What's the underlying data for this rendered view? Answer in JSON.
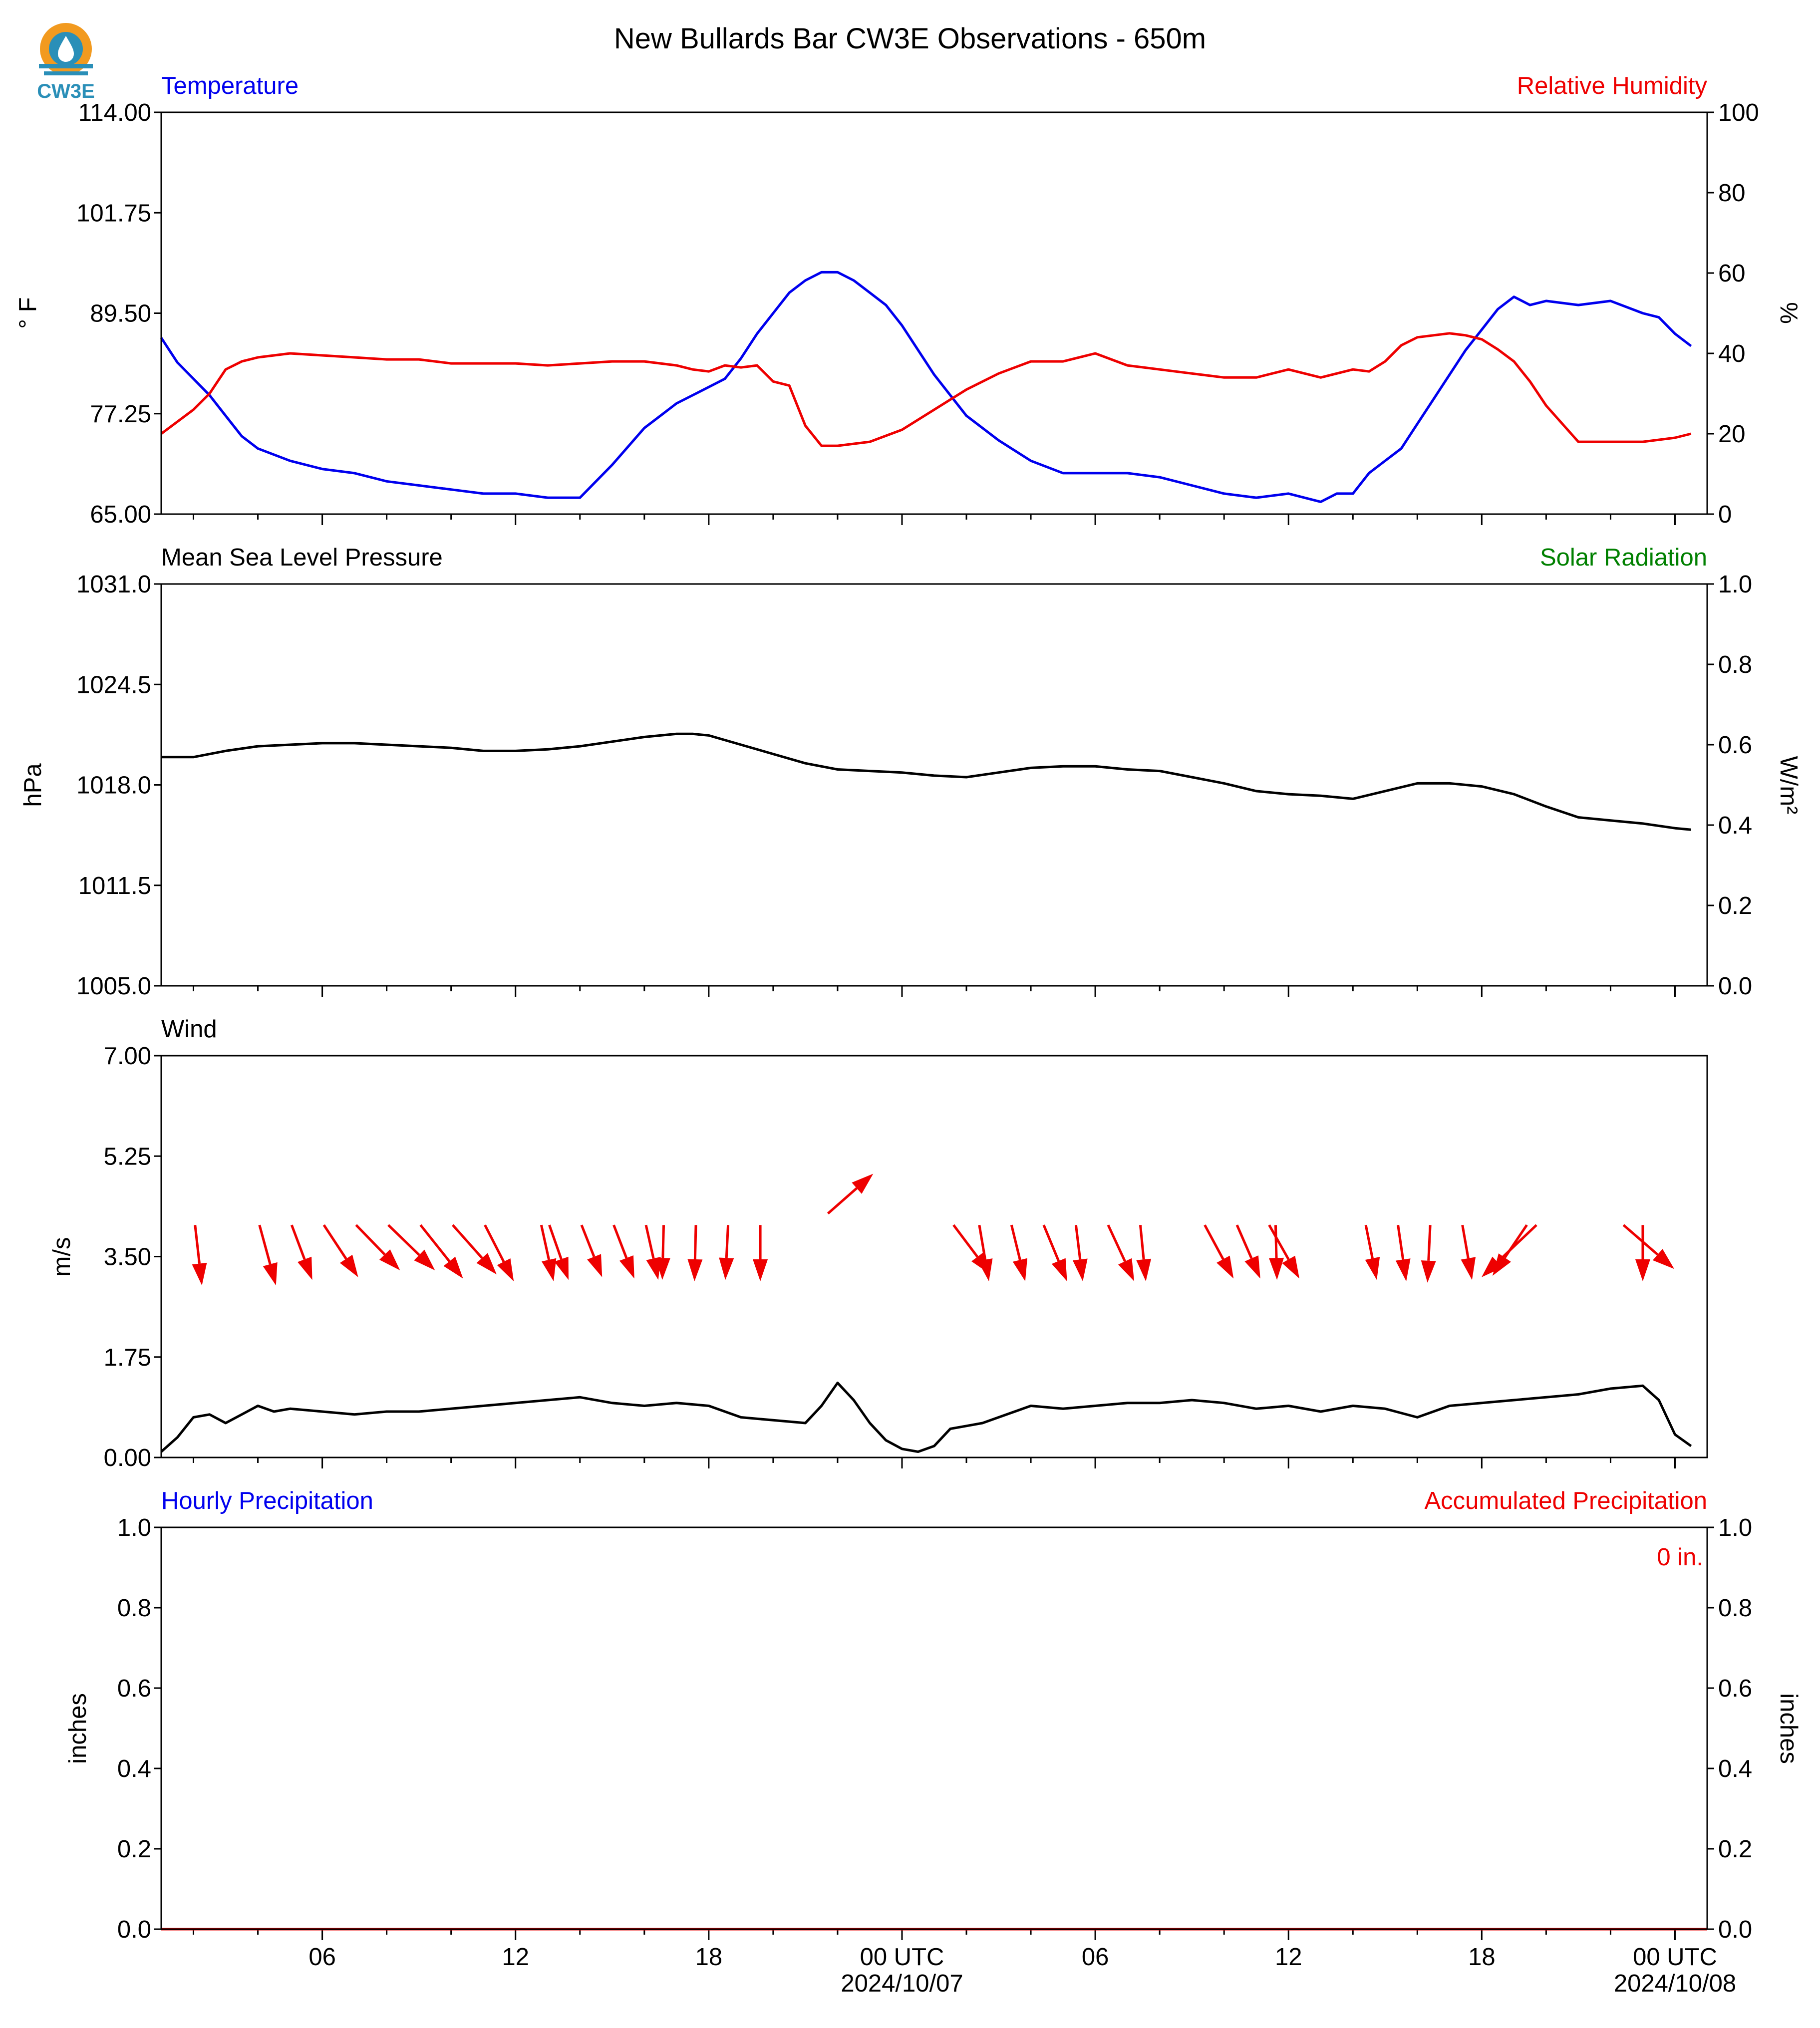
{
  "page": {
    "title": "New Bullards Bar CW3E Observations - 650m",
    "logo_text": "CW3E"
  },
  "colors": {
    "blue": "#0000ee",
    "red": "#ee0000",
    "green": "#008000",
    "black": "#000000",
    "logo_orange": "#f29a1f",
    "logo_teal": "#2a8fb8"
  },
  "x_axis": {
    "ticks": [
      {
        "label": "06",
        "hour": 5
      },
      {
        "label": "12",
        "hour": 11
      },
      {
        "label": "18",
        "hour": 17
      },
      {
        "label": "00 UTC",
        "hour": 23,
        "date": "2024/10/07"
      },
      {
        "label": "06",
        "hour": 29
      },
      {
        "label": "12",
        "hour": 35
      },
      {
        "label": "18",
        "hour": 41
      },
      {
        "label": "00 UTC",
        "hour": 47,
        "date": "2024/10/08"
      }
    ],
    "range_hours": [
      0,
      48
    ]
  },
  "chart_data": [
    {
      "type": "line",
      "panel": "temperature_humidity",
      "left_title": "Temperature",
      "right_title": "Relative Humidity",
      "ylabel": "° F",
      "y2label": "%",
      "ylim": [
        65,
        114
      ],
      "y2lim": [
        0,
        100
      ],
      "yticks": [
        "65.00",
        "77.25",
        "89.50",
        "101.75",
        "114.00"
      ],
      "y2ticks": [
        "0",
        "20",
        "40",
        "60",
        "80",
        "100"
      ],
      "series": [
        {
          "axis": "left",
          "color": "#0000ee",
          "x": [
            0,
            0.5,
            1,
            1.5,
            2,
            2.5,
            3,
            4,
            5,
            6,
            7,
            8,
            9,
            10,
            11,
            12,
            13,
            14,
            15,
            15.5,
            16,
            16.5,
            17,
            17.5,
            18,
            18.5,
            19,
            19.5,
            20,
            20.5,
            21,
            21.5,
            22,
            22.5,
            23,
            23.5,
            24,
            25,
            26,
            27,
            28,
            29,
            30,
            31,
            32,
            33,
            34,
            35,
            36,
            36.5,
            37,
            37.5,
            38,
            38.5,
            39,
            39.5,
            40,
            40.5,
            41,
            41.5,
            42,
            42.5,
            43,
            44,
            45,
            46,
            46.5,
            47,
            47.5
          ],
          "values": [
            86.5,
            83.5,
            81.5,
            79.5,
            77,
            74.5,
            73,
            71.5,
            70.5,
            70,
            69,
            68.5,
            68,
            67.5,
            67.5,
            67,
            67,
            71,
            75.5,
            77,
            78.5,
            79.5,
            80.5,
            81.5,
            84,
            87,
            89.5,
            92,
            93.5,
            94.5,
            94.5,
            93.5,
            92,
            90.5,
            88,
            85,
            82,
            77,
            74,
            71.5,
            70,
            70,
            70,
            69.5,
            68.5,
            67.5,
            67,
            67.5,
            66.5,
            67.5,
            67.5,
            70,
            71.5,
            73,
            76,
            79,
            82,
            85,
            87.5,
            90,
            91.5,
            90.5,
            91,
            90.5,
            91,
            89.5,
            89,
            87,
            85.5
          ]
        },
        {
          "axis": "right",
          "color": "#ee0000",
          "x": [
            0,
            0.5,
            1,
            1.5,
            2,
            2.5,
            3,
            4,
            5,
            6,
            7,
            8,
            9,
            10,
            11,
            12,
            13,
            14,
            15,
            16,
            16.5,
            17,
            17.5,
            18,
            18.5,
            19,
            19.5,
            20,
            20.5,
            21,
            22,
            23,
            24,
            25,
            26,
            27,
            28,
            29,
            30,
            31,
            32,
            33,
            34,
            35,
            36,
            37,
            37.5,
            38,
            38.5,
            39,
            40,
            40.5,
            41,
            41.5,
            42,
            42.5,
            43,
            44,
            45,
            46,
            47,
            47.5
          ],
          "values": [
            20,
            23,
            26,
            30,
            36,
            38,
            39,
            40,
            39.5,
            39,
            38.5,
            38.5,
            37.5,
            37.5,
            37.5,
            37,
            37.5,
            38,
            38,
            37,
            36,
            35.5,
            37,
            36.5,
            37,
            33,
            32,
            22,
            17,
            17,
            18,
            21,
            26,
            31,
            35,
            38,
            38,
            40,
            37,
            36,
            35,
            34,
            34,
            36,
            34,
            36,
            35.5,
            38,
            42,
            44,
            45,
            44.5,
            43.5,
            41,
            38,
            33,
            27,
            18,
            18,
            18,
            19,
            20
          ]
        }
      ]
    },
    {
      "type": "line",
      "panel": "pressure_solar",
      "left_title": "Mean Sea Level Pressure",
      "right_title": "Solar Radiation",
      "ylabel": "hPa",
      "y2label": "W/m²",
      "ylim": [
        1005,
        1031
      ],
      "y2lim": [
        0,
        1
      ],
      "yticks": [
        "1005.0",
        "1011.5",
        "1018.0",
        "1024.5",
        "1031.0"
      ],
      "y2ticks": [
        "0.0",
        "0.2",
        "0.4",
        "0.6",
        "0.8",
        "1.0"
      ],
      "series": [
        {
          "axis": "left",
          "color": "#000000",
          "x": [
            0,
            1,
            2,
            3,
            4,
            5,
            6,
            7,
            8,
            9,
            10,
            11,
            12,
            13,
            14,
            15,
            16,
            16.5,
            17,
            18,
            19,
            20,
            21,
            22,
            23,
            24,
            25,
            26,
            27,
            28,
            29,
            30,
            31,
            32,
            33,
            34,
            35,
            36,
            37,
            38,
            39,
            40,
            41,
            42,
            43,
            44,
            45,
            46,
            47,
            47.5
          ],
          "values": [
            1019.8,
            1019.8,
            1020.2,
            1020.5,
            1020.6,
            1020.7,
            1020.7,
            1020.6,
            1020.5,
            1020.4,
            1020.2,
            1020.2,
            1020.3,
            1020.5,
            1020.8,
            1021.1,
            1021.3,
            1021.3,
            1021.2,
            1020.6,
            1020.0,
            1019.4,
            1019.0,
            1018.9,
            1018.8,
            1018.6,
            1018.5,
            1018.8,
            1019.1,
            1019.2,
            1019.2,
            1019.0,
            1018.9,
            1018.5,
            1018.1,
            1017.6,
            1017.4,
            1017.3,
            1017.1,
            1017.6,
            1018.1,
            1018.1,
            1017.9,
            1017.4,
            1016.6,
            1015.9,
            1015.7,
            1015.5,
            1015.2,
            1015.1
          ]
        }
      ]
    },
    {
      "type": "line",
      "panel": "wind",
      "left_title": "Wind",
      "ylabel": "m/s",
      "ylim": [
        0,
        7
      ],
      "yticks": [
        "0.00",
        "1.75",
        "3.50",
        "5.25",
        "7.00"
      ],
      "series": [
        {
          "axis": "left",
          "color": "#000000",
          "x": [
            0,
            0.5,
            1,
            1.5,
            2,
            2.5,
            3,
            3.5,
            4,
            5,
            6,
            7,
            8,
            9,
            10,
            11,
            12,
            13,
            14,
            15,
            16,
            17,
            18,
            19,
            20,
            20.5,
            21,
            21.5,
            22,
            22.5,
            23,
            23.5,
            24,
            24.5,
            25,
            25.5,
            26,
            27,
            28,
            29,
            30,
            31,
            32,
            33,
            34,
            35,
            36,
            37,
            38,
            39,
            40,
            41,
            42,
            43,
            44,
            45,
            46,
            46.5,
            47,
            47.5
          ],
          "values": [
            0.1,
            0.35,
            0.7,
            0.75,
            0.6,
            0.75,
            0.9,
            0.8,
            0.85,
            0.8,
            0.75,
            0.8,
            0.8,
            0.85,
            0.9,
            0.95,
            1.0,
            1.05,
            0.95,
            0.9,
            0.95,
            0.9,
            0.7,
            0.65,
            0.6,
            0.9,
            1.3,
            1.0,
            0.6,
            0.3,
            0.15,
            0.1,
            0.2,
            0.5,
            0.55,
            0.6,
            0.7,
            0.9,
            0.85,
            0.9,
            0.95,
            0.95,
            1.0,
            0.95,
            0.85,
            0.9,
            0.8,
            0.9,
            0.85,
            0.7,
            0.9,
            0.95,
            1.0,
            1.05,
            1.1,
            1.2,
            1.25,
            1.0,
            0.4,
            0.2
          ]
        }
      ]
    },
    {
      "type": "line",
      "panel": "precipitation",
      "left_title": "Hourly Precipitation",
      "right_title": "Accumulated Precipitation",
      "annotation": "0 in.",
      "ylabel": "inches",
      "y2label": "inches",
      "ylim": [
        0,
        1
      ],
      "y2lim": [
        0,
        1
      ],
      "yticks": [
        "0.0",
        "0.2",
        "0.4",
        "0.6",
        "0.8",
        "1.0"
      ],
      "y2ticks": [
        "0.0",
        "0.2",
        "0.4",
        "0.6",
        "0.8",
        "1.0"
      ],
      "series": [
        {
          "axis": "left",
          "color": "#0000ee",
          "x": [
            0,
            48
          ],
          "values": [
            0,
            0
          ]
        },
        {
          "axis": "right",
          "color": "#ee0000",
          "x": [
            0,
            48
          ],
          "values": [
            0,
            0
          ]
        }
      ]
    }
  ],
  "wind_arrows": [
    {
      "x": 1.05,
      "u": 0.25,
      "v": -2.2,
      "y": 4.05
    },
    {
      "x": 3.05,
      "u": 0.6,
      "v": -2.2,
      "y": 4.05
    },
    {
      "x": 4.05,
      "u": 0.75,
      "v": -2.0,
      "y": 4.05
    },
    {
      "x": 5.05,
      "u": 1.25,
      "v": -1.9,
      "y": 4.05
    },
    {
      "x": 6.05,
      "u": 1.6,
      "v": -1.65,
      "y": 4.05
    },
    {
      "x": 7.05,
      "u": 1.7,
      "v": -1.65,
      "y": 4.05
    },
    {
      "x": 8.05,
      "u": 1.55,
      "v": -1.95,
      "y": 4.05
    },
    {
      "x": 9.05,
      "u": 1.6,
      "v": -1.8,
      "y": 4.05
    },
    {
      "x": 10.05,
      "u": 1.05,
      "v": -2.05,
      "y": 4.05
    },
    {
      "x": 11.8,
      "u": 0.45,
      "v": -2.05,
      "y": 4.05
    },
    {
      "x": 12.05,
      "u": 0.7,
      "v": -2.0,
      "y": 4.05
    },
    {
      "x": 13.05,
      "u": 0.75,
      "v": -1.9,
      "y": 4.05
    },
    {
      "x": 14.05,
      "u": 0.75,
      "v": -1.95,
      "y": 4.05
    },
    {
      "x": 15.05,
      "u": 0.45,
      "v": -2.0,
      "y": 4.05
    },
    {
      "x": 15.6,
      "u": -0.05,
      "v": -2.0,
      "y": 4.05
    },
    {
      "x": 16.6,
      "u": -0.05,
      "v": -2.05,
      "y": 4.05
    },
    {
      "x": 17.6,
      "u": -0.1,
      "v": -2.0,
      "y": 4.05
    },
    {
      "x": 18.6,
      "u": 0.0,
      "v": -2.05,
      "y": 4.05
    },
    {
      "x": 20.7,
      "u": 1.65,
      "v": 1.45,
      "y": 4.25
    },
    {
      "x": 24.6,
      "u": 1.35,
      "v": -1.8,
      "y": 4.05
    },
    {
      "x": 25.4,
      "u": 0.35,
      "v": -2.05,
      "y": 4.05
    },
    {
      "x": 26.4,
      "u": 0.5,
      "v": -2.05,
      "y": 4.05
    },
    {
      "x": 27.4,
      "u": 0.85,
      "v": -2.05,
      "y": 4.05
    },
    {
      "x": 28.4,
      "u": 0.25,
      "v": -2.05,
      "y": 4.05
    },
    {
      "x": 29.4,
      "u": 0.95,
      "v": -2.05,
      "y": 4.05
    },
    {
      "x": 30.4,
      "u": 0.2,
      "v": -2.05,
      "y": 4.05
    },
    {
      "x": 32.4,
      "u": 1.05,
      "v": -1.95,
      "y": 4.05
    },
    {
      "x": 33.4,
      "u": 0.85,
      "v": -1.95,
      "y": 4.05
    },
    {
      "x": 34.4,
      "u": 1.1,
      "v": -1.95,
      "y": 4.05
    },
    {
      "x": 34.6,
      "u": 0.05,
      "v": -2.0,
      "y": 4.05
    },
    {
      "x": 37.4,
      "u": 0.4,
      "v": -2.0,
      "y": 4.05
    },
    {
      "x": 38.4,
      "u": 0.3,
      "v": -2.05,
      "y": 4.05
    },
    {
      "x": 39.4,
      "u": -0.1,
      "v": -2.1,
      "y": 4.05
    },
    {
      "x": 40.4,
      "u": 0.35,
      "v": -2.0,
      "y": 4.05
    },
    {
      "x": 42.7,
      "u": -2.0,
      "v": -1.9,
      "y": 4.05
    },
    {
      "x": 42.4,
      "u": -1.25,
      "v": -1.85,
      "y": 4.05
    },
    {
      "x": 45.4,
      "u": 1.85,
      "v": -1.6,
      "y": 4.05
    },
    {
      "x": 46.0,
      "u": 0.0,
      "v": -2.05,
      "y": 4.05
    }
  ]
}
